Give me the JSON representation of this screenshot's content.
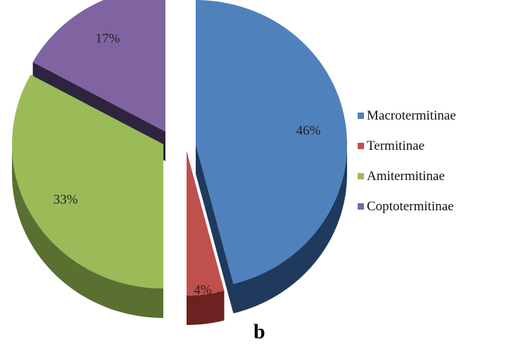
{
  "chart_data": {
    "type": "pie",
    "style": "3d-exploded",
    "categories": [
      "Macrotermitinae",
      "Termitinae",
      "Amitermitinae",
      "Coptotermitinae"
    ],
    "values": [
      46,
      4,
      33,
      17
    ],
    "labels": [
      "46%",
      "4%",
      "33%",
      "17%"
    ],
    "colors": [
      "#4f81bd",
      "#c0504d",
      "#9bbb59",
      "#8064a2"
    ],
    "side_colors": [
      "#1f3a5c",
      "#6b2220",
      "#5a7030",
      "#2e2440"
    ],
    "legend_position": "right",
    "caption": "b"
  }
}
